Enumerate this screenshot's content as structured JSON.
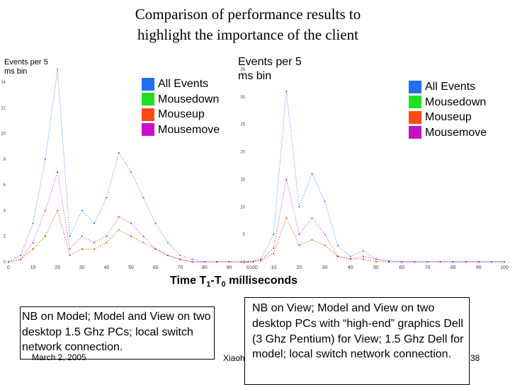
{
  "slide": {
    "title_line1": "Comparison of performance results to",
    "title_line2": "highlight the importance of the client",
    "x_axis_label_prefix": "Time T",
    "x_axis_label_sub1": "1",
    "x_axis_label_mid": "-T",
    "x_axis_label_sub2": "0",
    "x_axis_label_suffix": " milliseconds",
    "left_y_label": "Events per 5 ms bin",
    "right_y_label": "Events per 5 ms bin",
    "left_caption": "NB on Model; Model and View on two desktop 1.5 Ghz PCs; local switch network connection.",
    "right_caption": "NB on View; Model and View on two desktop PCs with “high-end” graphics Dell (3 Ghz Pentium) for View; 1.5 Ghz Dell for model; local switch network connection.",
    "footer_date": "March 2, 2005",
    "footer_author": "Xiaohong Qiu",
    "footer_page": "38"
  },
  "legend": [
    {
      "label": "All Events",
      "color": "#1f6ff0"
    },
    {
      "label": "Mousedown",
      "color": "#1ee01e"
    },
    {
      "label": "Mouseup",
      "color": "#ff4a10"
    },
    {
      "label": "Mousemove",
      "color": "#c810c8"
    }
  ],
  "chart_data": [
    {
      "type": "line",
      "xlim": [
        0,
        100
      ],
      "ylim": [
        0,
        15
      ],
      "xticks": [
        0,
        10,
        20,
        30,
        40,
        50,
        60,
        70,
        80,
        90,
        100
      ],
      "yticks": [
        0,
        2,
        4,
        6,
        8,
        10,
        12,
        14
      ],
      "x": [
        0,
        5,
        10,
        15,
        20,
        25,
        30,
        35,
        40,
        45,
        50,
        55,
        60,
        65,
        70,
        75,
        80,
        85,
        90,
        95,
        100
      ],
      "series": [
        {
          "name": "All Events",
          "values": [
            0,
            0.5,
            3,
            8,
            15,
            2,
            4,
            3,
            5,
            8.5,
            7,
            5,
            3,
            1.5,
            0.5,
            0.2,
            0,
            0,
            0,
            0,
            0
          ]
        },
        {
          "name": "Mousedown",
          "values": [
            0,
            0.2,
            1,
            2,
            4,
            0.5,
            1,
            1,
            1.5,
            2.5,
            2,
            1.5,
            1,
            0.5,
            0.2,
            0,
            0,
            0,
            0,
            0,
            0
          ]
        },
        {
          "name": "Mouseup",
          "values": [
            0,
            0.2,
            1,
            2,
            4,
            0.5,
            1,
            1,
            1.5,
            2.5,
            2,
            1.5,
            1,
            0.5,
            0.2,
            0,
            0,
            0,
            0,
            0,
            0
          ]
        },
        {
          "name": "Mousemove",
          "values": [
            0,
            0.2,
            1.5,
            4,
            7,
            1,
            2,
            1.5,
            2,
            3.5,
            3,
            2,
            1,
            0.5,
            0.2,
            0,
            0,
            0,
            0,
            0,
            0
          ]
        }
      ]
    },
    {
      "type": "line",
      "xlim": [
        0,
        100
      ],
      "ylim": [
        0,
        35
      ],
      "xticks": [
        0,
        10,
        20,
        30,
        40,
        50,
        60,
        70,
        80,
        90,
        100
      ],
      "yticks": [
        0,
        5,
        10,
        15,
        20,
        25,
        30,
        35
      ],
      "x": [
        0,
        5,
        10,
        15,
        20,
        25,
        30,
        35,
        40,
        45,
        50,
        55,
        60,
        65,
        70,
        75,
        80,
        85,
        90,
        95,
        100
      ],
      "series": [
        {
          "name": "All Events",
          "values": [
            0,
            0.5,
            5,
            31,
            10,
            16,
            11,
            3,
            1,
            2,
            0.5,
            0.2,
            0,
            0,
            0,
            0,
            0,
            0,
            0,
            0,
            0
          ]
        },
        {
          "name": "Mousedown",
          "values": [
            0,
            0.2,
            1.5,
            8,
            3,
            4,
            3,
            1,
            0.5,
            0.5,
            0,
            0,
            0,
            0,
            0,
            0,
            0,
            0,
            0,
            0,
            0
          ]
        },
        {
          "name": "Mouseup",
          "values": [
            0,
            0.2,
            1.5,
            8,
            3,
            4,
            3,
            1,
            0.5,
            0.5,
            0,
            0,
            0,
            0,
            0,
            0,
            0,
            0,
            0,
            0,
            0
          ]
        },
        {
          "name": "Mousemove",
          "values": [
            0,
            0.3,
            2.5,
            15,
            5,
            8,
            5,
            1,
            0.5,
            1,
            0.5,
            0,
            0,
            0,
            0,
            0,
            0,
            0,
            0,
            0,
            0
          ]
        }
      ]
    }
  ]
}
